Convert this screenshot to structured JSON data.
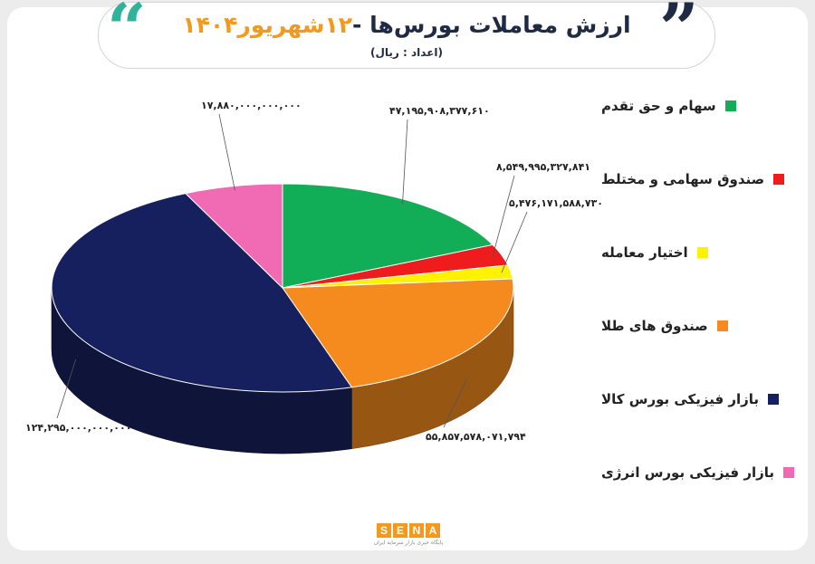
{
  "header": {
    "title_main": "ارزش معاملات بورس‌ها -",
    "title_date": "۱۲شهریور۱۴۰۴",
    "subtitle": "(اعداد : ریال)"
  },
  "chart_data": {
    "type": "pie",
    "title": "ارزش معاملات بورس‌ها -۱۲شهریور۱۴۰۴",
    "subtitle": "(اعداد : ریال)",
    "legend_position": "right",
    "series": [
      {
        "name": "سهام و حق تقدم",
        "value": 47195908377610,
        "label": "۴۷,۱۹۵,۹۰۸,۳۷۷,۶۱۰",
        "color": "#11ae57"
      },
      {
        "name": "صندوق سهامی و مختلط",
        "value": 8549995327841,
        "label": "۸,۵۴۹,۹۹۵,۳۲۷,۸۴۱",
        "color": "#ee1c1c"
      },
      {
        "name": "اختیار معامله",
        "value": 5476171588730,
        "label": "۵,۴۷۶,۱۷۱,۵۸۸,۷۳۰",
        "color": "#fff200"
      },
      {
        "name": "صندوق های طلا",
        "value": 55857578071794,
        "label": "۵۵,۸۵۷,۵۷۸,۰۷۱,۷۹۴",
        "color": "#f58a1f"
      },
      {
        "name": "بازار فیزیکی بورس کالا",
        "value": 124295000000000,
        "label": "۱۲۴,۲۹۵,۰۰۰,۰۰۰,۰۰۰",
        "color": "#16205e"
      },
      {
        "name": "بازار فیزیکی بورس انرژی",
        "value": 17880000000000,
        "label": "۱۷,۸۸۰,۰۰۰,۰۰۰,۰۰۰",
        "color": "#f06ab4"
      }
    ]
  },
  "logo": {
    "letters": [
      "S",
      "E",
      "N",
      "A"
    ],
    "tagline": "پایگاه خبری بازار سرمایه ایران"
  }
}
